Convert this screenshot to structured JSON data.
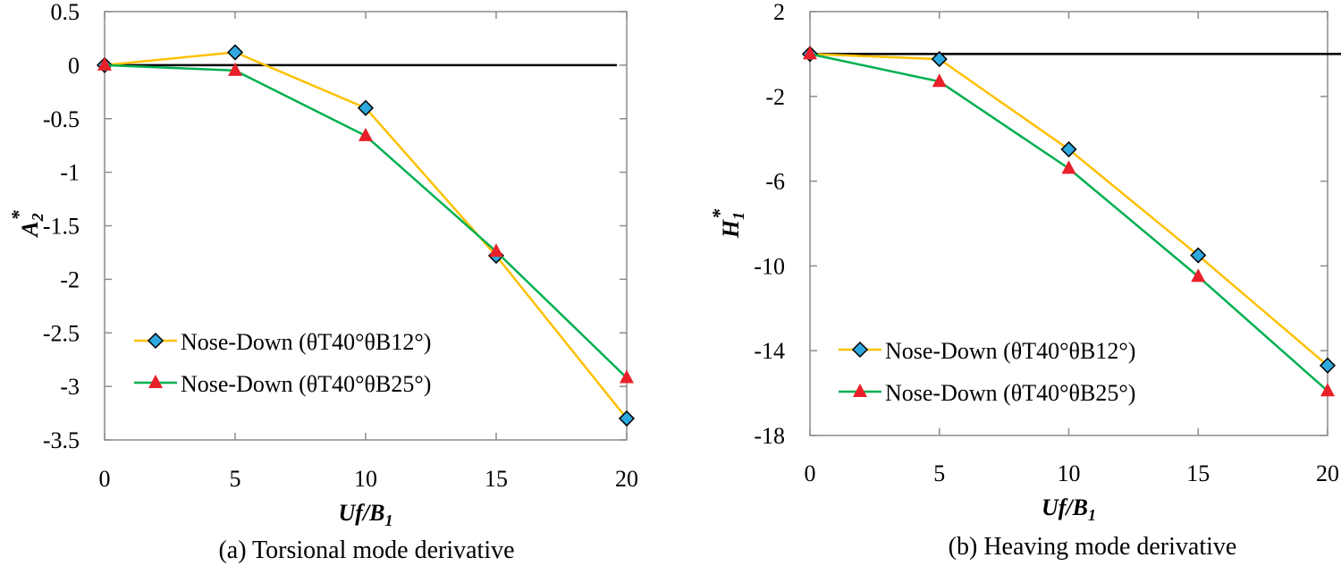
{
  "colors": {
    "series1_line": "#FFC000",
    "series1_marker": "#2EA8DF",
    "series2_line": "#00B050",
    "series2_marker": "#E8202A",
    "zero_line": "#000000",
    "axis": "#8C8C8C"
  },
  "chart_data": [
    {
      "type": "line",
      "title": "",
      "caption": "(a)   Torsional mode derivative",
      "xlabel": "Uf/B",
      "xlabel_sub": "1",
      "ylabel": "A",
      "ylabel_sub": "2",
      "ylabel_sup": "*",
      "xlim": [
        0,
        20
      ],
      "ylim": [
        -3.5,
        0.5
      ],
      "xticks": [
        0,
        5,
        10,
        15,
        20
      ],
      "yticks": [
        0.5,
        0,
        -0.5,
        -1,
        -1.5,
        -2,
        -2.5,
        -3,
        -3.5
      ],
      "ytick_labels": [
        "0.5",
        "0",
        "-0.5",
        "-1",
        "-1.5",
        "-2",
        "-2.5",
        "-3",
        "-3.5"
      ],
      "legend_position": "bottom-left",
      "x": [
        0,
        5,
        10,
        15,
        20
      ],
      "series": [
        {
          "name": "Nose-Down (θT40°θB12°)",
          "marker": "diamond",
          "values": [
            0,
            0.12,
            -0.4,
            -1.78,
            -3.3
          ]
        },
        {
          "name": "Nose-Down (θT40°θB25°)",
          "marker": "triangle",
          "values": [
            0,
            -0.05,
            -0.66,
            -1.74,
            -2.92
          ]
        }
      ]
    },
    {
      "type": "line",
      "title": "",
      "caption": "(b)   Heaving mode derivative",
      "xlabel": "Uf/B",
      "xlabel_sub": "1",
      "ylabel": "H",
      "ylabel_sub": "1",
      "ylabel_sup": "*",
      "xlim": [
        0,
        20
      ],
      "ylim": [
        -18,
        2
      ],
      "xticks": [
        0,
        5,
        10,
        15,
        20
      ],
      "yticks": [
        2,
        -2,
        -6,
        -10,
        -14,
        -18
      ],
      "ytick_labels": [
        "2",
        "-2",
        "-6",
        "-10",
        "-14",
        "-18"
      ],
      "legend_position": "bottom-left",
      "x": [
        0,
        5,
        10,
        15,
        20
      ],
      "series": [
        {
          "name": "Nose-Down (θT40°θB12°)",
          "marker": "diamond",
          "values": [
            0,
            -0.24,
            -4.5,
            -9.5,
            -14.7
          ]
        },
        {
          "name": "Nose-Down (θT40°θB25°)",
          "marker": "triangle",
          "values": [
            0,
            -1.3,
            -5.4,
            -10.5,
            -15.9
          ]
        }
      ]
    }
  ]
}
